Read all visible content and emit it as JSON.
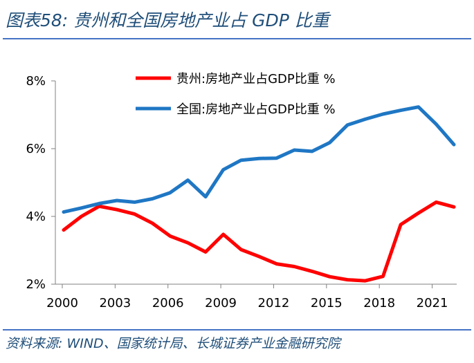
{
  "header": {
    "title": "图表58:  贵州和全国房地产业占 GDP 比重"
  },
  "footer": {
    "source": "资料来源: WIND、国家统计局、长城证券产业金融研究院"
  },
  "chart_data": {
    "type": "line",
    "title": "贵州和全国房地产业占 GDP 比重",
    "xlabel": "",
    "ylabel": "",
    "ylim": [
      2,
      8
    ],
    "xlim": [
      2000,
      2022
    ],
    "yticks": [
      2,
      4,
      6,
      8
    ],
    "ytick_labels": [
      "2%",
      "4%",
      "6%",
      "8%"
    ],
    "xticks": [
      2000,
      2003,
      2006,
      2009,
      2012,
      2015,
      2018,
      2021
    ],
    "xtick_labels": [
      "2000",
      "2003",
      "2006",
      "2009",
      "2012",
      "2015",
      "2018",
      "2021"
    ],
    "legend_position": "top-right",
    "x": [
      2000,
      2001,
      2002,
      2003,
      2004,
      2005,
      2006,
      2007,
      2008,
      2009,
      2010,
      2011,
      2012,
      2013,
      2014,
      2015,
      2016,
      2017,
      2018,
      2019,
      2020,
      2021,
      2022
    ],
    "series": [
      {
        "name": "贵州:房地产业占GDP比重 %",
        "color": "#ff0000",
        "values": [
          3.6,
          4.0,
          4.3,
          4.2,
          4.07,
          3.8,
          3.42,
          3.22,
          2.95,
          3.47,
          3.02,
          2.82,
          2.6,
          2.52,
          2.38,
          2.22,
          2.13,
          2.1,
          2.23,
          3.76,
          4.1,
          4.42,
          4.28
        ]
      },
      {
        "name": "全国:房地产业占GDP比重 %",
        "color": "#1f77c4",
        "values": [
          4.13,
          4.25,
          4.38,
          4.47,
          4.42,
          4.52,
          4.7,
          5.07,
          4.58,
          5.38,
          5.66,
          5.71,
          5.72,
          5.96,
          5.92,
          6.18,
          6.7,
          6.87,
          7.02,
          7.13,
          7.23,
          6.72,
          6.12
        ]
      }
    ]
  }
}
